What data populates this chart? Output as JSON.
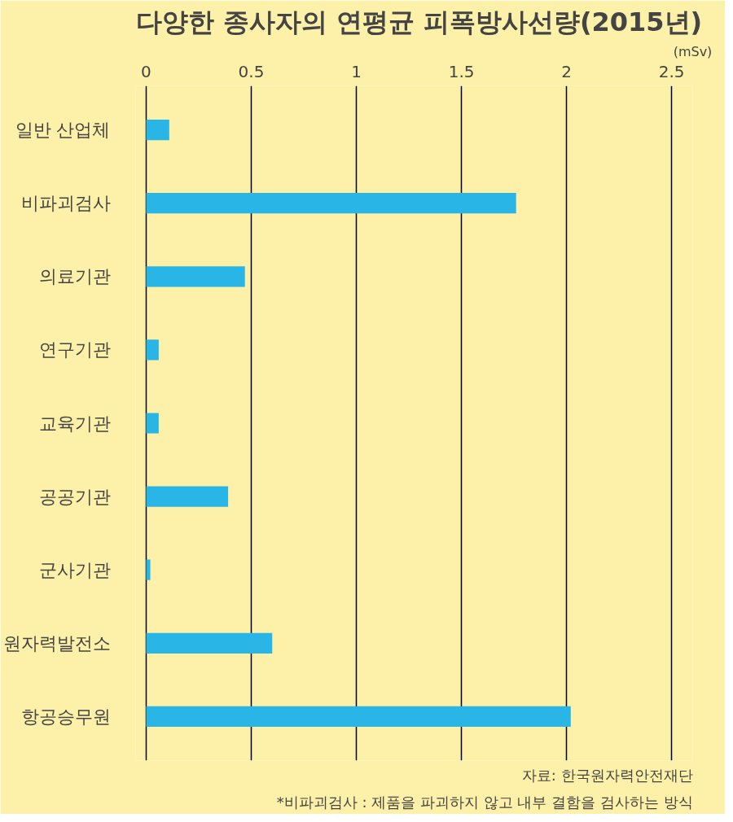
{
  "chart_data": {
    "type": "bar",
    "orientation": "horizontal",
    "title": "다양한 종사자의 연평균 피폭방사선량(2015년)",
    "xlabel": "(mSv)",
    "categories": [
      "일반 산업체",
      "비파괴검사",
      "의료기관",
      "연구기관",
      "교육기관",
      "공공기관",
      "군사기관",
      "원자력발전소",
      "항공승무원"
    ],
    "values": [
      0.11,
      1.76,
      0.47,
      0.06,
      0.06,
      0.39,
      0.02,
      0.6,
      2.02
    ],
    "color": "#29b6e6",
    "xlim": [
      -0.05,
      2.6
    ],
    "xticks": [
      0,
      0.5,
      1,
      1.5,
      2,
      2.5
    ],
    "grid": "x",
    "annotations": [
      "자료: 한국원자력안전재단",
      "*비파괴검사 : 제품을 파괴하지 않고 내부 결함을 검사하는 방식"
    ]
  }
}
